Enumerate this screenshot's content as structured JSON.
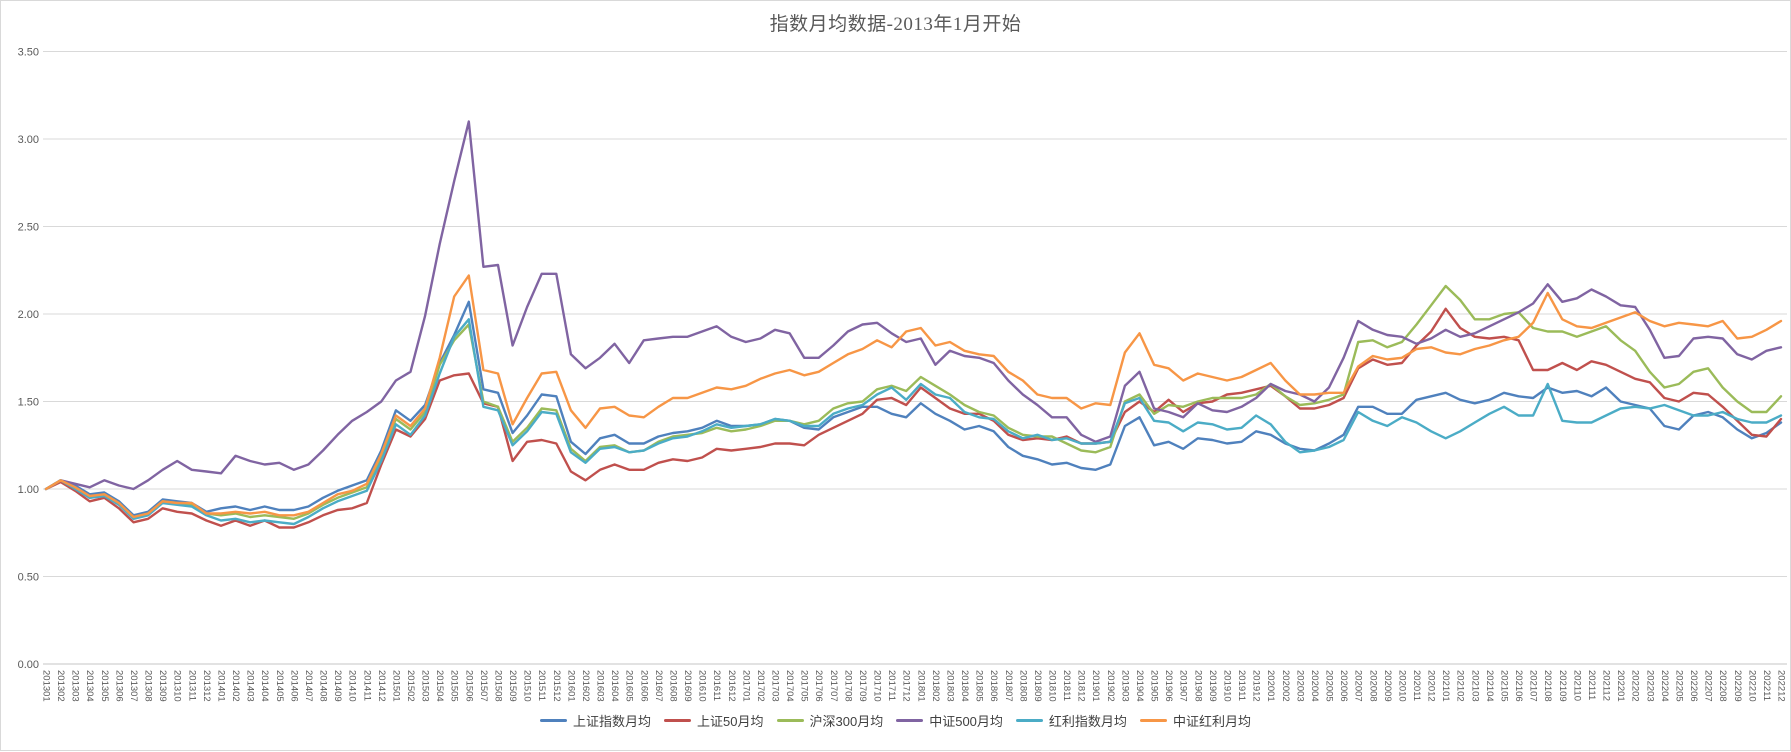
{
  "chart_data": {
    "type": "line",
    "title": "指数月均数据-2013年1月开始",
    "xlabel": "",
    "ylabel": "",
    "ylim": [
      0,
      3.5
    ],
    "y_ticks": [
      "0.00",
      "0.50",
      "1.00",
      "1.50",
      "2.00",
      "2.50",
      "3.00",
      "3.50"
    ],
    "grid": "horizontal",
    "legend_position": "bottom",
    "x_labels": [
      "201301",
      "201302",
      "201303",
      "201304",
      "201305",
      "201306",
      "201307",
      "201308",
      "201309",
      "201310",
      "201311",
      "201312",
      "201401",
      "201402",
      "201403",
      "201404",
      "201405",
      "201406",
      "201407",
      "201408",
      "201409",
      "201410",
      "201411",
      "201412",
      "201501",
      "201502",
      "201503",
      "201504",
      "201505",
      "201506",
      "201507",
      "201508",
      "201509",
      "201510",
      "201511",
      "201512",
      "201601",
      "201602",
      "201603",
      "201604",
      "201605",
      "201606",
      "201607",
      "201608",
      "201609",
      "201610",
      "201611",
      "201612",
      "201701",
      "201702",
      "201703",
      "201704",
      "201705",
      "201706",
      "201707",
      "201708",
      "201709",
      "201710",
      "201711",
      "201712",
      "201801",
      "201802",
      "201803",
      "201804",
      "201805",
      "201806",
      "201807",
      "201808",
      "201809",
      "201810",
      "201811",
      "201812",
      "201901",
      "201902",
      "201903",
      "201904",
      "201905",
      "201906",
      "201907",
      "201908",
      "201909",
      "201910",
      "201911",
      "201912",
      "202001",
      "202002",
      "202003",
      "202004",
      "202005",
      "202006",
      "202007",
      "202008",
      "202009",
      "202010",
      "202011",
      "202012",
      "202101",
      "202102",
      "202103",
      "202104",
      "202105",
      "202106",
      "202107",
      "202108",
      "202109",
      "202110",
      "202111",
      "202112",
      "202201",
      "202202",
      "202203",
      "202204",
      "202205",
      "202206",
      "202207",
      "202208",
      "202209",
      "202210",
      "202211",
      "202212"
    ],
    "series": [
      {
        "name": "上证指数月均",
        "key": "sse-composite",
        "color": "#4F81BD",
        "values": [
          1.0,
          1.05,
          1.02,
          0.97,
          0.98,
          0.93,
          0.85,
          0.87,
          0.94,
          0.93,
          0.92,
          0.87,
          0.89,
          0.9,
          0.88,
          0.9,
          0.88,
          0.88,
          0.9,
          0.95,
          0.99,
          1.02,
          1.05,
          1.22,
          1.45,
          1.39,
          1.48,
          1.72,
          1.88,
          2.07,
          1.57,
          1.55,
          1.32,
          1.42,
          1.54,
          1.53,
          1.27,
          1.2,
          1.29,
          1.31,
          1.26,
          1.26,
          1.3,
          1.32,
          1.33,
          1.35,
          1.39,
          1.36,
          1.36,
          1.37,
          1.4,
          1.39,
          1.35,
          1.34,
          1.41,
          1.44,
          1.47,
          1.47,
          1.43,
          1.41,
          1.49,
          1.43,
          1.39,
          1.34,
          1.36,
          1.33,
          1.24,
          1.19,
          1.17,
          1.14,
          1.15,
          1.12,
          1.11,
          1.14,
          1.36,
          1.41,
          1.25,
          1.27,
          1.23,
          1.29,
          1.28,
          1.26,
          1.27,
          1.33,
          1.31,
          1.26,
          1.23,
          1.22,
          1.26,
          1.31,
          1.47,
          1.47,
          1.43,
          1.43,
          1.51,
          1.53,
          1.55,
          1.51,
          1.49,
          1.51,
          1.55,
          1.53,
          1.52,
          1.58,
          1.55,
          1.56,
          1.53,
          1.58,
          1.5,
          1.48,
          1.46,
          1.36,
          1.34,
          1.42,
          1.44,
          1.41,
          1.34,
          1.29,
          1.32,
          1.38
        ]
      },
      {
        "name": "上证50月均",
        "key": "sse50",
        "color": "#C0504D",
        "values": [
          1.0,
          1.04,
          0.99,
          0.93,
          0.95,
          0.89,
          0.81,
          0.83,
          0.89,
          0.87,
          0.86,
          0.82,
          0.79,
          0.82,
          0.79,
          0.82,
          0.78,
          0.78,
          0.81,
          0.85,
          0.88,
          0.89,
          0.92,
          1.14,
          1.34,
          1.3,
          1.4,
          1.62,
          1.65,
          1.66,
          1.49,
          1.47,
          1.16,
          1.27,
          1.28,
          1.26,
          1.1,
          1.05,
          1.11,
          1.14,
          1.11,
          1.11,
          1.15,
          1.17,
          1.16,
          1.18,
          1.23,
          1.22,
          1.23,
          1.24,
          1.26,
          1.26,
          1.25,
          1.31,
          1.35,
          1.39,
          1.43,
          1.51,
          1.52,
          1.48,
          1.58,
          1.52,
          1.46,
          1.43,
          1.43,
          1.39,
          1.31,
          1.28,
          1.29,
          1.28,
          1.3,
          1.26,
          1.26,
          1.27,
          1.44,
          1.5,
          1.44,
          1.51,
          1.44,
          1.49,
          1.5,
          1.54,
          1.55,
          1.57,
          1.59,
          1.53,
          1.46,
          1.46,
          1.48,
          1.52,
          1.69,
          1.74,
          1.71,
          1.72,
          1.82,
          1.9,
          2.03,
          1.92,
          1.87,
          1.86,
          1.87,
          1.85,
          1.68,
          1.68,
          1.72,
          1.68,
          1.73,
          1.71,
          1.67,
          1.63,
          1.61,
          1.52,
          1.5,
          1.55,
          1.54,
          1.47,
          1.39,
          1.31,
          1.3,
          1.4
        ]
      },
      {
        "name": "沪深300月均",
        "key": "csi300",
        "color": "#9BBB59",
        "values": [
          1.0,
          1.05,
          1.01,
          0.95,
          0.97,
          0.92,
          0.84,
          0.86,
          0.93,
          0.92,
          0.91,
          0.86,
          0.85,
          0.86,
          0.84,
          0.85,
          0.84,
          0.83,
          0.86,
          0.91,
          0.95,
          0.98,
          1.01,
          1.18,
          1.4,
          1.34,
          1.44,
          1.71,
          1.85,
          1.94,
          1.5,
          1.47,
          1.27,
          1.35,
          1.46,
          1.45,
          1.23,
          1.16,
          1.24,
          1.25,
          1.21,
          1.22,
          1.27,
          1.3,
          1.31,
          1.32,
          1.35,
          1.33,
          1.34,
          1.36,
          1.39,
          1.39,
          1.37,
          1.39,
          1.46,
          1.49,
          1.5,
          1.57,
          1.59,
          1.56,
          1.64,
          1.59,
          1.54,
          1.48,
          1.44,
          1.42,
          1.35,
          1.31,
          1.3,
          1.3,
          1.26,
          1.22,
          1.21,
          1.24,
          1.5,
          1.54,
          1.43,
          1.48,
          1.47,
          1.5,
          1.52,
          1.52,
          1.52,
          1.54,
          1.6,
          1.53,
          1.48,
          1.49,
          1.51,
          1.54,
          1.84,
          1.85,
          1.81,
          1.84,
          1.94,
          2.05,
          2.16,
          2.08,
          1.97,
          1.97,
          2.0,
          2.01,
          1.92,
          1.9,
          1.9,
          1.87,
          1.9,
          1.93,
          1.85,
          1.79,
          1.67,
          1.58,
          1.6,
          1.67,
          1.69,
          1.58,
          1.5,
          1.44,
          1.44,
          1.53
        ]
      },
      {
        "name": "中证500月均",
        "key": "csi500",
        "color": "#8064A2",
        "values": [
          1.0,
          1.05,
          1.03,
          1.01,
          1.05,
          1.02,
          1.0,
          1.05,
          1.11,
          1.16,
          1.11,
          1.1,
          1.09,
          1.19,
          1.16,
          1.14,
          1.15,
          1.11,
          1.14,
          1.22,
          1.31,
          1.39,
          1.44,
          1.5,
          1.62,
          1.67,
          1.99,
          2.4,
          2.76,
          3.1,
          2.27,
          2.28,
          1.82,
          2.04,
          2.23,
          2.23,
          1.77,
          1.69,
          1.75,
          1.83,
          1.72,
          1.85,
          1.86,
          1.87,
          1.87,
          1.9,
          1.93,
          1.87,
          1.84,
          1.86,
          1.91,
          1.89,
          1.75,
          1.75,
          1.82,
          1.9,
          1.94,
          1.95,
          1.89,
          1.84,
          1.86,
          1.71,
          1.79,
          1.76,
          1.75,
          1.72,
          1.62,
          1.54,
          1.48,
          1.41,
          1.41,
          1.31,
          1.27,
          1.3,
          1.59,
          1.67,
          1.46,
          1.44,
          1.41,
          1.49,
          1.45,
          1.44,
          1.47,
          1.52,
          1.6,
          1.56,
          1.54,
          1.5,
          1.58,
          1.75,
          1.96,
          1.91,
          1.88,
          1.87,
          1.83,
          1.86,
          1.91,
          1.87,
          1.89,
          1.93,
          1.97,
          2.01,
          2.06,
          2.17,
          2.07,
          2.09,
          2.14,
          2.1,
          2.05,
          2.04,
          1.91,
          1.75,
          1.76,
          1.86,
          1.87,
          1.86,
          1.77,
          1.74,
          1.79,
          1.81
        ]
      },
      {
        "name": "红利指数月均",
        "key": "dividend-index",
        "color": "#4BACC6",
        "values": [
          1.0,
          1.05,
          1.0,
          0.95,
          0.96,
          0.91,
          0.83,
          0.85,
          0.92,
          0.91,
          0.9,
          0.85,
          0.82,
          0.83,
          0.81,
          0.82,
          0.81,
          0.8,
          0.84,
          0.89,
          0.93,
          0.96,
          0.99,
          1.16,
          1.37,
          1.31,
          1.42,
          1.66,
          1.87,
          1.97,
          1.47,
          1.45,
          1.25,
          1.33,
          1.44,
          1.43,
          1.21,
          1.15,
          1.23,
          1.24,
          1.21,
          1.22,
          1.26,
          1.29,
          1.3,
          1.33,
          1.37,
          1.35,
          1.36,
          1.37,
          1.4,
          1.39,
          1.36,
          1.36,
          1.43,
          1.46,
          1.48,
          1.54,
          1.58,
          1.51,
          1.6,
          1.54,
          1.52,
          1.44,
          1.41,
          1.4,
          1.33,
          1.29,
          1.31,
          1.28,
          1.29,
          1.26,
          1.26,
          1.27,
          1.49,
          1.52,
          1.39,
          1.38,
          1.33,
          1.38,
          1.37,
          1.34,
          1.35,
          1.42,
          1.37,
          1.27,
          1.21,
          1.22,
          1.24,
          1.28,
          1.44,
          1.39,
          1.36,
          1.41,
          1.38,
          1.33,
          1.29,
          1.33,
          1.38,
          1.43,
          1.47,
          1.42,
          1.42,
          1.6,
          1.39,
          1.38,
          1.38,
          1.42,
          1.46,
          1.47,
          1.46,
          1.48,
          1.45,
          1.42,
          1.42,
          1.44,
          1.4,
          1.38,
          1.38,
          1.42
        ]
      },
      {
        "name": "中证红利月均",
        "key": "csi-dividend",
        "color": "#F79646",
        "values": [
          1.0,
          1.05,
          1.01,
          0.96,
          0.97,
          0.92,
          0.84,
          0.86,
          0.93,
          0.92,
          0.92,
          0.86,
          0.86,
          0.87,
          0.86,
          0.87,
          0.85,
          0.85,
          0.87,
          0.92,
          0.97,
          0.99,
          1.03,
          1.2,
          1.42,
          1.36,
          1.46,
          1.75,
          2.1,
          2.22,
          1.68,
          1.66,
          1.37,
          1.52,
          1.66,
          1.67,
          1.45,
          1.35,
          1.46,
          1.47,
          1.42,
          1.41,
          1.47,
          1.52,
          1.52,
          1.55,
          1.58,
          1.57,
          1.59,
          1.63,
          1.66,
          1.68,
          1.65,
          1.67,
          1.72,
          1.77,
          1.8,
          1.85,
          1.81,
          1.9,
          1.92,
          1.82,
          1.84,
          1.79,
          1.77,
          1.76,
          1.67,
          1.62,
          1.54,
          1.52,
          1.52,
          1.46,
          1.49,
          1.48,
          1.78,
          1.89,
          1.71,
          1.69,
          1.62,
          1.66,
          1.64,
          1.62,
          1.64,
          1.68,
          1.72,
          1.62,
          1.54,
          1.54,
          1.55,
          1.55,
          1.7,
          1.76,
          1.74,
          1.75,
          1.8,
          1.81,
          1.78,
          1.77,
          1.8,
          1.82,
          1.85,
          1.87,
          1.95,
          2.12,
          1.97,
          1.93,
          1.92,
          1.95,
          1.98,
          2.01,
          1.96,
          1.93,
          1.95,
          1.94,
          1.93,
          1.96,
          1.86,
          1.87,
          1.91,
          1.96
        ]
      }
    ]
  },
  "colors": {
    "grid": "#D9D9D9",
    "axis": "#C6C6C6",
    "tick_text": "#595959",
    "title_text": "#595959",
    "legend_text": "#404040"
  }
}
